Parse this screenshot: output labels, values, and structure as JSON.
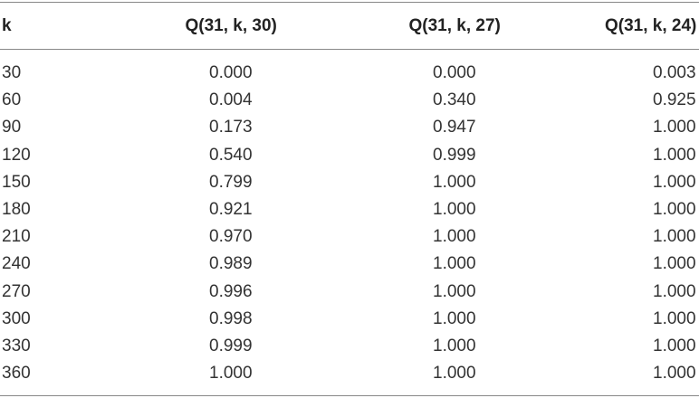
{
  "table": {
    "header": [
      "k",
      "Q(31, k, 30)",
      "Q(31, k, 27)",
      "Q(31, k, 24)"
    ],
    "rows": [
      [
        "30",
        "0.000",
        "0.000",
        "0.003"
      ],
      [
        "60",
        "0.004",
        "0.340",
        "0.925"
      ],
      [
        "90",
        "0.173",
        "0.947",
        "1.000"
      ],
      [
        "120",
        "0.540",
        "0.999",
        "1.000"
      ],
      [
        "150",
        "0.799",
        "1.000",
        "1.000"
      ],
      [
        "180",
        "0.921",
        "1.000",
        "1.000"
      ],
      [
        "210",
        "0.970",
        "1.000",
        "1.000"
      ],
      [
        "240",
        "0.989",
        "1.000",
        "1.000"
      ],
      [
        "270",
        "0.996",
        "1.000",
        "1.000"
      ],
      [
        "300",
        "0.998",
        "1.000",
        "1.000"
      ],
      [
        "330",
        "0.999",
        "1.000",
        "1.000"
      ],
      [
        "360",
        "1.000",
        "1.000",
        "1.000"
      ]
    ]
  }
}
